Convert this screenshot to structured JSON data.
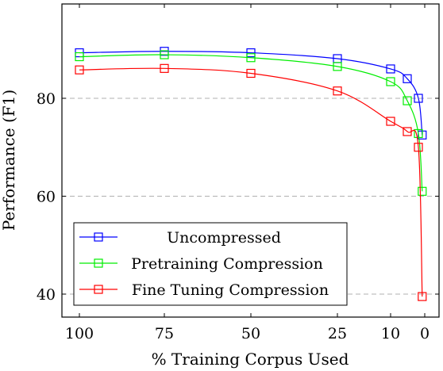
{
  "chart_data": {
    "type": "line",
    "x": [
      100,
      75,
      50,
      25,
      10,
      5,
      2.5,
      1
    ],
    "xtick_values": [
      100,
      75,
      50,
      25,
      10,
      0
    ],
    "xtick_labels": [
      "100",
      "75",
      "50",
      "25",
      "10",
      "0"
    ],
    "yticks": [
      40,
      60,
      80
    ],
    "ylim": [
      36,
      100
    ],
    "xlabel": "% Training Corpus Used",
    "ylabel": "Performance (F1)",
    "grid": "horizontal dashed",
    "legend_position": "bottom-left",
    "series": [
      {
        "name": "Uncompressed",
        "color": "#0000ff",
        "values": [
          89.3,
          89.6,
          89.3,
          88.1,
          86.0,
          84.0,
          80.0,
          72.5
        ]
      },
      {
        "name": "Pretraining Compression",
        "color": "#00ee00",
        "values": [
          88.5,
          88.9,
          88.3,
          86.5,
          83.4,
          79.5,
          72.8,
          61.0
        ]
      },
      {
        "name": "Fine Tuning Compression",
        "color": "#ff0000",
        "values": [
          85.8,
          86.1,
          85.1,
          81.5,
          75.3,
          73.2,
          70.0,
          39.5
        ]
      }
    ]
  }
}
